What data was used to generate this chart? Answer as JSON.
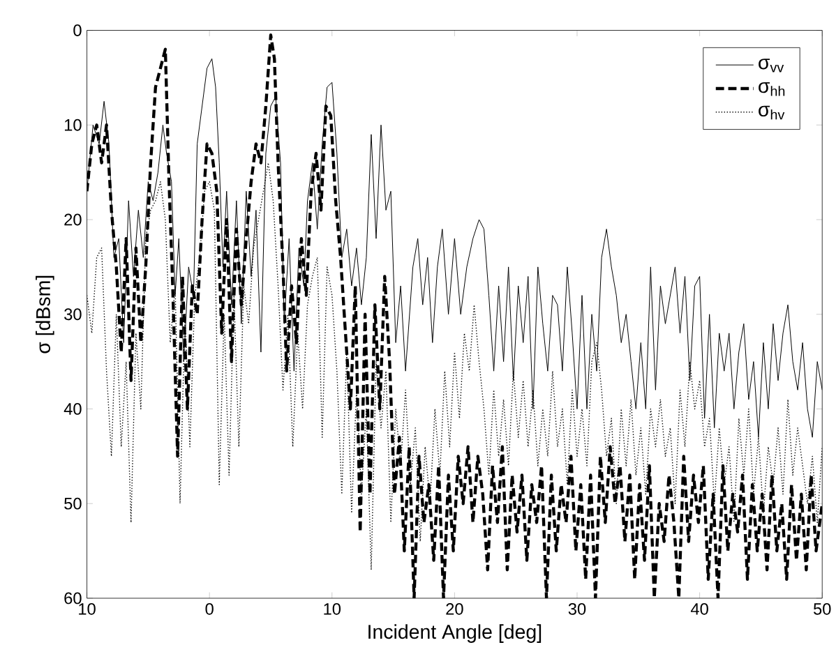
{
  "chart_data": {
    "type": "line",
    "xlabel": "Incident Angle [deg]",
    "ylabel": "σ [dBsm]",
    "xlim": [
      -10,
      50
    ],
    "xticks": [
      {
        "value": -10,
        "label": "10"
      },
      0,
      10,
      20,
      30,
      40,
      50
    ],
    "ylim": [
      60,
      0
    ],
    "yticks": [
      0,
      10,
      20,
      30,
      40,
      50,
      60
    ],
    "legend": "top right",
    "marker": "none",
    "series": [
      {
        "name": "σ$_{vv}$",
        "color": "#000000",
        "line_style": "solid",
        "x": [
          -10,
          -9.5,
          -9,
          -8.6,
          -8.2,
          -7.8,
          -7.4,
          -7,
          -6.6,
          -6.2,
          -5.8,
          -5.4,
          -5,
          -4.6,
          -4.2,
          -3.8,
          -3.5,
          -3.1,
          -2.8,
          -2.5,
          -2.1,
          -1.7,
          -1.3,
          -1,
          -0.6,
          -0.2,
          0.2,
          0.5,
          0.8,
          1.1,
          1.4,
          1.8,
          2.2,
          2.6,
          3,
          3.4,
          3.8,
          4.2,
          4.6,
          5,
          5.4,
          5.8,
          6.1,
          6.5,
          6.9,
          7.3,
          7.7,
          8,
          8.4,
          8.8,
          9.2,
          9.6,
          10,
          10.4,
          10.8,
          11.2,
          11.6,
          12,
          12.4,
          12.8,
          13.2,
          13.6,
          14,
          14.4,
          14.8,
          15.2,
          15.6,
          16,
          16.6,
          17,
          17.4,
          17.8,
          18.2,
          18.6,
          19,
          19.5,
          20,
          20.5,
          21,
          21.5,
          22,
          22.4,
          22.8,
          23.2,
          23.6,
          24,
          24.4,
          24.8,
          25.2,
          25.6,
          26,
          26.4,
          26.8,
          27.2,
          27.6,
          28,
          28.4,
          28.8,
          29.2,
          29.6,
          30,
          30.4,
          30.8,
          31.2,
          31.6,
          32,
          32.4,
          32.8,
          33.2,
          33.6,
          34,
          34.4,
          34.8,
          35.2,
          35.6,
          36,
          36.4,
          36.8,
          37.2,
          37.6,
          38,
          38.4,
          38.8,
          39.2,
          39.6,
          40,
          40.4,
          40.8,
          41.2,
          41.6,
          42,
          42.4,
          42.8,
          43.2,
          43.6,
          44,
          44.4,
          44.8,
          45.2,
          45.6,
          46,
          46.4,
          46.8,
          47.2,
          47.6,
          48,
          48.4,
          48.8,
          49.2,
          49.6,
          50
        ],
        "values": [
          17,
          10,
          12,
          7.5,
          12,
          24,
          22,
          33,
          18,
          26,
          19,
          24,
          16,
          18,
          15,
          10,
          13,
          16,
          28,
          22,
          35,
          25,
          28,
          12,
          8,
          4,
          3,
          6,
          14,
          25,
          17,
          29,
          18,
          31,
          17,
          26,
          19,
          34,
          13,
          8,
          7,
          14,
          31,
          22,
          36,
          23,
          27,
          18,
          14,
          21,
          12,
          6,
          5.5,
          13,
          24,
          21,
          27,
          23,
          29,
          24,
          11,
          22,
          10,
          19,
          17,
          33,
          27,
          36,
          25,
          22,
          29,
          24,
          33,
          25,
          21,
          30,
          22,
          30,
          25,
          22,
          20,
          21,
          28,
          36,
          27,
          35,
          25,
          37,
          27,
          33,
          26,
          40,
          25,
          31,
          36,
          28,
          29,
          36,
          25,
          32,
          40,
          28,
          40,
          30,
          36,
          24,
          21,
          25,
          28,
          33,
          30,
          35,
          40,
          33,
          40,
          25,
          38,
          27,
          31,
          28,
          25,
          32,
          26,
          37,
          27,
          26,
          41,
          30,
          42,
          32,
          36,
          32,
          40,
          34,
          31,
          39,
          35,
          43,
          33,
          40,
          31,
          37,
          32,
          29,
          35,
          38,
          33,
          40,
          43,
          35,
          38
        ]
      },
      {
        "name": "σ$_{hh}$",
        "color": "#000000",
        "line_style": "dashed",
        "x": [
          -10,
          -9.6,
          -9.2,
          -8.8,
          -8.4,
          -8,
          -7.6,
          -7.2,
          -6.8,
          -6.4,
          -6,
          -5.6,
          -5.2,
          -4.8,
          -4.4,
          -4,
          -3.6,
          -3.3,
          -3,
          -2.6,
          -2.2,
          -1.8,
          -1.4,
          -1,
          -0.6,
          -0.2,
          0.2,
          0.6,
          1,
          1.4,
          1.8,
          2.2,
          2.6,
          3,
          3.4,
          3.8,
          4.2,
          4.6,
          5,
          5.3,
          5.6,
          6,
          6.3,
          6.7,
          7.1,
          7.5,
          7.9,
          8.3,
          8.7,
          9.1,
          9.5,
          9.9,
          10.3,
          10.7,
          11.1,
          11.5,
          11.9,
          12.3,
          12.7,
          13.1,
          13.5,
          13.9,
          14.3,
          14.7,
          15.1,
          15.5,
          15.9,
          16.3,
          16.7,
          17.1,
          17.5,
          17.9,
          18.3,
          18.7,
          19.1,
          19.5,
          19.9,
          20.3,
          20.7,
          21.1,
          21.5,
          21.9,
          22.3,
          22.7,
          23.1,
          23.5,
          23.9,
          24.3,
          24.7,
          25.1,
          25.5,
          25.9,
          26.3,
          26.7,
          27.1,
          27.5,
          27.9,
          28.3,
          28.7,
          29.1,
          29.5,
          29.9,
          30.3,
          30.7,
          31.1,
          31.5,
          31.9,
          32.3,
          32.7,
          33.1,
          33.5,
          33.9,
          34.3,
          34.7,
          35.1,
          35.5,
          35.9,
          36.3,
          36.7,
          37.1,
          37.5,
          37.9,
          38.3,
          38.7,
          39.1,
          39.5,
          39.9,
          40.3,
          40.7,
          41.1,
          41.5,
          41.9,
          42.3,
          42.7,
          43.1,
          43.5,
          43.9,
          44.3,
          44.7,
          45.1,
          45.5,
          45.9,
          46.3,
          46.7,
          47.1,
          47.5,
          47.9,
          48.3,
          48.7,
          49.1,
          49.5,
          50
        ],
        "values": [
          17,
          12,
          10,
          14,
          10,
          19,
          25,
          34,
          22,
          37,
          23,
          33,
          25,
          14,
          6,
          4,
          2,
          16,
          27,
          45,
          26,
          40,
          27,
          30,
          20,
          12,
          13,
          17,
          32,
          20,
          35,
          21,
          29,
          22,
          16,
          12,
          14,
          8,
          0.5,
          3,
          14,
          25,
          36,
          27,
          33,
          22,
          28,
          17,
          13,
          19,
          8,
          9,
          18,
          24,
          32,
          40,
          27,
          53,
          30,
          49,
          29,
          40,
          26,
          35,
          49,
          43,
          55,
          44,
          60,
          45,
          52,
          48,
          56,
          46,
          60,
          47,
          55,
          45,
          50,
          44,
          52,
          45,
          49,
          57,
          46,
          52,
          44,
          57,
          47,
          53,
          47,
          56,
          48,
          52,
          46,
          60,
          47,
          55,
          48,
          52,
          45,
          55,
          48,
          58,
          47,
          60,
          45,
          52,
          44,
          50,
          46,
          54,
          47,
          58,
          48,
          56,
          46,
          60,
          50,
          54,
          47,
          52,
          60,
          45,
          54,
          47,
          52,
          46,
          58,
          49,
          60,
          46,
          55,
          49,
          53,
          47,
          58,
          48,
          55,
          49,
          57,
          47,
          55,
          50,
          58,
          48,
          56,
          49,
          57,
          47,
          55,
          50
        ]
      },
      {
        "name": "σ$_{hv}$",
        "color": "#000000",
        "line_style": "dotted",
        "x": [
          -10,
          -9.6,
          -9.2,
          -8.8,
          -8.4,
          -8,
          -7.6,
          -7.2,
          -6.8,
          -6.4,
          -6,
          -5.6,
          -5.2,
          -4.8,
          -4.4,
          -4,
          -3.6,
          -3.2,
          -2.8,
          -2.4,
          -2,
          -1.6,
          -1.2,
          -0.8,
          -0.4,
          0,
          0.4,
          0.8,
          1.2,
          1.6,
          2,
          2.4,
          2.8,
          3.2,
          3.6,
          4,
          4.4,
          4.8,
          5.2,
          5.6,
          6,
          6.4,
          6.8,
          7.2,
          7.6,
          8,
          8.4,
          8.8,
          9.2,
          9.6,
          10,
          10.4,
          10.8,
          11.2,
          11.6,
          12,
          12.4,
          12.8,
          13.2,
          13.6,
          14,
          14.4,
          14.8,
          15.2,
          15.6,
          16,
          16.4,
          16.8,
          17.2,
          17.6,
          18,
          18.4,
          18.8,
          19.2,
          19.6,
          20,
          20.4,
          20.8,
          21.2,
          21.6,
          22,
          22.4,
          22.8,
          23.2,
          23.6,
          24,
          24.4,
          24.8,
          25.2,
          25.6,
          26,
          26.4,
          26.8,
          27.2,
          27.6,
          28,
          28.4,
          28.8,
          29.2,
          29.6,
          30,
          30.4,
          30.8,
          31.2,
          31.6,
          32,
          32.4,
          32.8,
          33.2,
          33.6,
          34,
          34.4,
          34.8,
          35.2,
          35.6,
          36,
          36.4,
          36.8,
          37.2,
          37.6,
          38,
          38.4,
          38.8,
          39.2,
          39.6,
          40,
          40.4,
          40.8,
          41.2,
          41.6,
          42,
          42.4,
          42.8,
          43.2,
          43.6,
          44,
          44.4,
          44.8,
          45.2,
          45.6,
          46,
          46.4,
          46.8,
          47.2,
          47.6,
          48,
          48.8,
          49.2,
          49.6,
          50
        ],
        "values": [
          28,
          32,
          24,
          23,
          36,
          45,
          30,
          44,
          35,
          52,
          32,
          40,
          22,
          19,
          18,
          16,
          20,
          33,
          27,
          50,
          30,
          44,
          28,
          24,
          17,
          16,
          19,
          48,
          30,
          47,
          28,
          44,
          27,
          31,
          23,
          20,
          17,
          14,
          18,
          27,
          38,
          30,
          44,
          32,
          40,
          29,
          26,
          24,
          43,
          25,
          28,
          36,
          49,
          34,
          51,
          38,
          49,
          40,
          57,
          35,
          42,
          36,
          52,
          40,
          46,
          38,
          48,
          42,
          54,
          44,
          50,
          40,
          47,
          36,
          44,
          34,
          41,
          32,
          36,
          29,
          35,
          40,
          47,
          38,
          45,
          39,
          46,
          36,
          43,
          37,
          44,
          38,
          46,
          40,
          45,
          36,
          44,
          40,
          48,
          38,
          45,
          40,
          46,
          35,
          33,
          38,
          45,
          41,
          50,
          40,
          46,
          39,
          47,
          42,
          49,
          40,
          44,
          39,
          45,
          42,
          50,
          38,
          44,
          35,
          40,
          37,
          44,
          41,
          50,
          42,
          48,
          44,
          52,
          41,
          47,
          40,
          49,
          43,
          51,
          44,
          48,
          42,
          49,
          39,
          47,
          42,
          50,
          45,
          52,
          44
        ]
      }
    ]
  }
}
